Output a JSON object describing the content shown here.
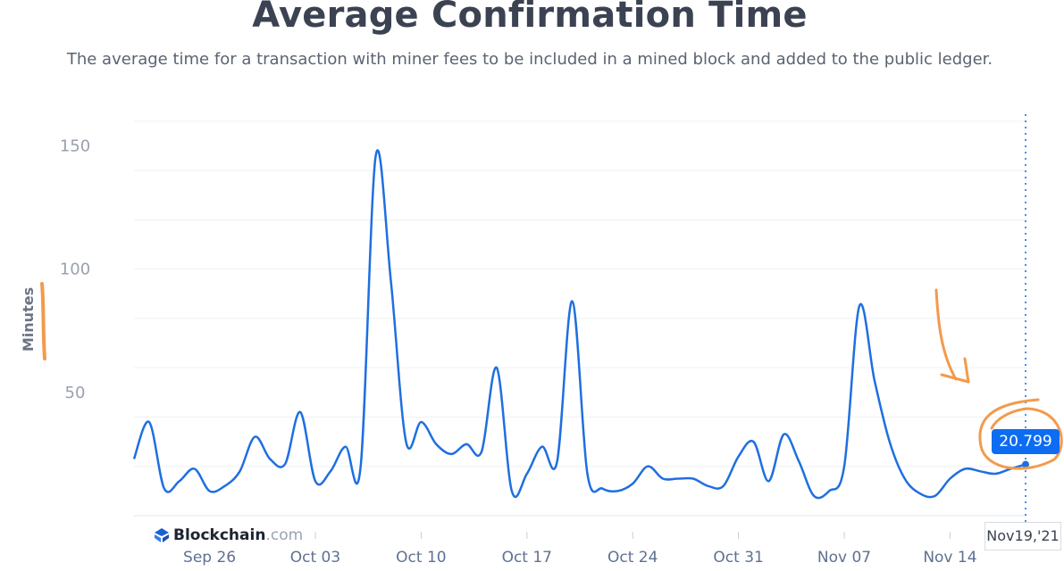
{
  "header": {
    "title": "Average Confirmation Time",
    "subtitle": "The average time for a transaction with miner fees to be included in a mined block and added to the public ledger."
  },
  "brand": {
    "name": "Blockchain",
    "domain": ".com"
  },
  "tooltip": {
    "value": "20.799",
    "date": "Nov19,'21"
  },
  "colors": {
    "line": "#1f6fe0",
    "annotation": "#f39a4c",
    "tooltip_bg": "#0c6cf2",
    "text": "#3b4252"
  },
  "chart_data": {
    "type": "line",
    "title": "Average Confirmation Time",
    "ylabel": "Minutes",
    "xlabel": "",
    "ylim": [
      0,
      165
    ],
    "xlim": [
      "2021-09-21",
      "2021-11-19"
    ],
    "yticks": [
      50,
      100,
      150
    ],
    "xticks": [
      "Sep 26",
      "Oct 03",
      "Oct 10",
      "Oct 17",
      "Oct 24",
      "Oct 31",
      "Nov 07",
      "Nov 14"
    ],
    "grid": true,
    "series": [
      {
        "x": [
          "2021-09-21",
          "2021-09-22",
          "2021-09-23",
          "2021-09-24",
          "2021-09-25",
          "2021-09-26",
          "2021-09-27",
          "2021-09-28",
          "2021-09-29",
          "2021-09-30",
          "2021-10-01",
          "2021-10-02",
          "2021-10-03",
          "2021-10-04",
          "2021-10-05",
          "2021-10-06",
          "2021-10-07",
          "2021-10-08",
          "2021-10-09",
          "2021-10-10",
          "2021-10-11",
          "2021-10-12",
          "2021-10-13",
          "2021-10-14",
          "2021-10-15",
          "2021-10-16",
          "2021-10-17",
          "2021-10-18",
          "2021-10-19",
          "2021-10-20",
          "2021-10-21",
          "2021-10-22",
          "2021-10-23",
          "2021-10-24",
          "2021-10-25",
          "2021-10-26",
          "2021-10-27",
          "2021-10-28",
          "2021-10-29",
          "2021-10-30",
          "2021-10-31",
          "2021-11-01",
          "2021-11-02",
          "2021-11-03",
          "2021-11-04",
          "2021-11-05",
          "2021-11-06",
          "2021-11-07",
          "2021-11-08",
          "2021-11-09",
          "2021-11-10",
          "2021-11-11",
          "2021-11-12",
          "2021-11-13",
          "2021-11-14",
          "2021-11-15",
          "2021-11-16",
          "2021-11-17",
          "2021-11-18",
          "2021-11-19"
        ],
        "y": [
          23,
          38,
          11,
          14,
          19,
          10,
          12,
          18,
          32,
          23,
          21,
          42,
          14,
          18,
          28,
          20,
          146,
          95,
          30,
          38,
          29,
          25,
          29,
          26,
          60,
          10,
          17,
          28,
          22,
          87,
          17,
          11,
          10,
          13,
          20,
          15,
          15,
          15,
          12,
          12,
          24,
          30,
          14,
          33,
          22,
          8,
          10,
          20,
          85,
          55,
          30,
          15,
          9,
          8,
          15,
          19,
          18,
          17,
          19,
          20.8
        ]
      }
    ]
  }
}
